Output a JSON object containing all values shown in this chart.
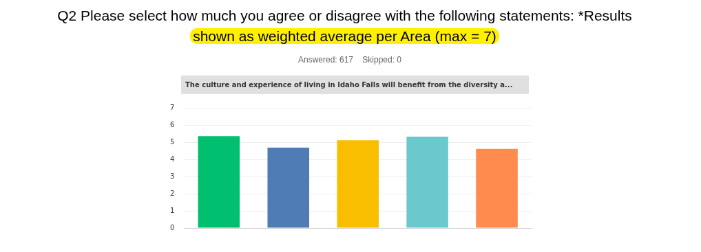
{
  "chart_data": {
    "type": "bar",
    "title": "Q2 Please select how much you agree or disagree with the following statements: *Results shown as weighted average per Area (max = 7)",
    "subtitle": "Answered: 617    Skipped: 0",
    "annotations": [
      "The culture and experience of living in Idaho Falls will benefit from the diversity a..."
    ],
    "categories": [
      null,
      null,
      null,
      null,
      null
    ],
    "values": [
      5.35,
      4.68,
      5.11,
      5.32,
      4.61
    ],
    "colors": [
      "#00bf6f",
      "#507cb6",
      "#f9be00",
      "#6bc8cd",
      "#ff8b4f"
    ],
    "ylim": [
      0,
      7
    ],
    "yticks": [
      0,
      1,
      2,
      3,
      4,
      5,
      6,
      7
    ],
    "grid": "y",
    "tick_labels": "y"
  }
}
